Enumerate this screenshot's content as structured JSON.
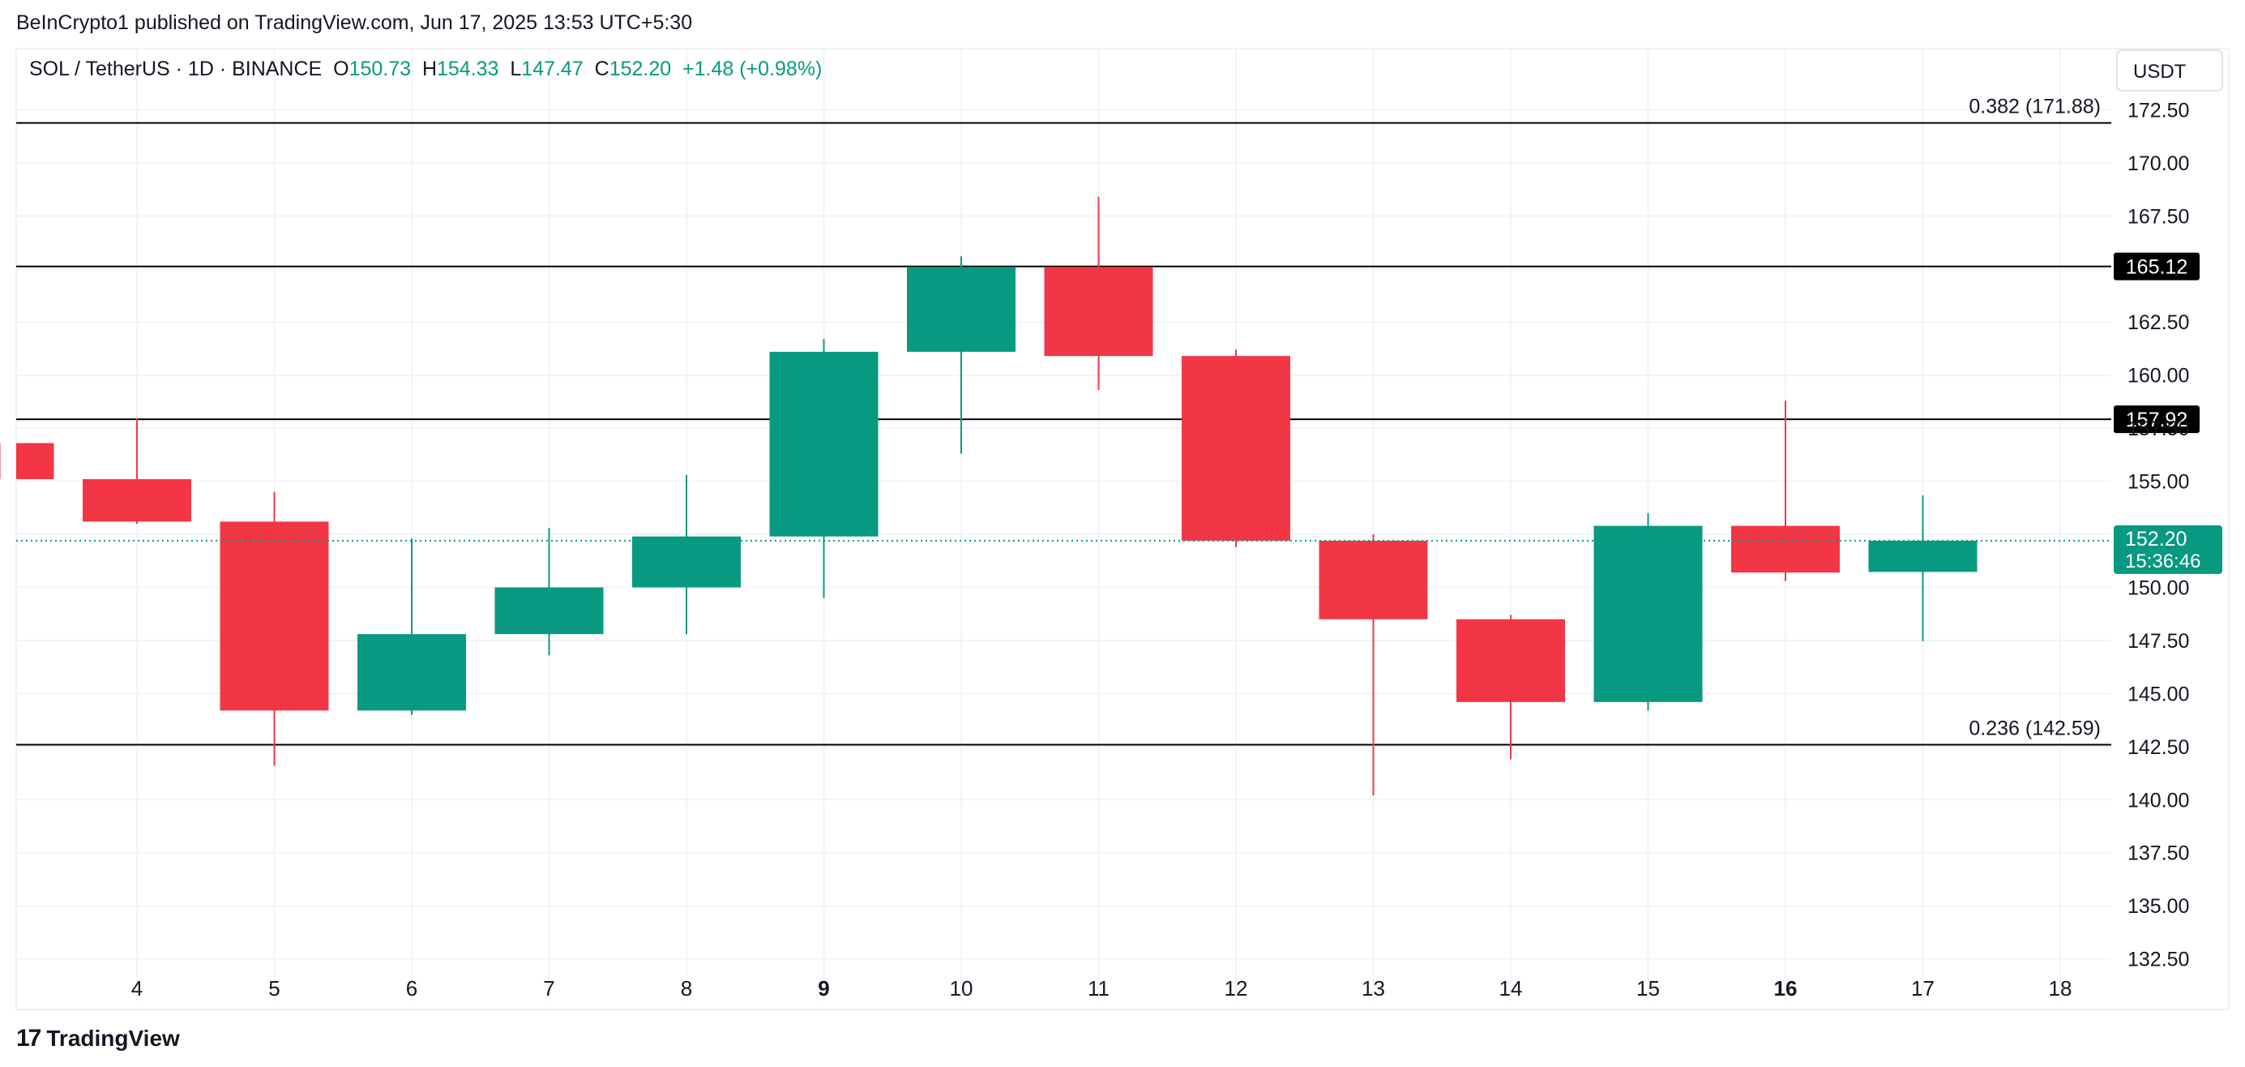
{
  "header": {
    "attribution": "BeInCrypto1 published on TradingView.com, Jun 17, 2025 13:53 UTC+5:30"
  },
  "legend": {
    "symbol": "SOL / TetherUS · 1D · BINANCE",
    "o_label": "O",
    "o_value": "150.73",
    "h_label": "H",
    "h_value": "154.33",
    "l_label": "L",
    "l_value": "147.47",
    "c_label": "C",
    "c_value": "152.20",
    "change": "+1.48 (+0.98%)"
  },
  "axis": {
    "currency": "USDT"
  },
  "footer": {
    "brand": "TradingView",
    "logo_glyph": "17"
  },
  "colors": {
    "up": "#089981",
    "down": "#f23645",
    "grid": "#f0f3fa",
    "text": "#131722",
    "level_line": "#000000",
    "label_bg": "#000000",
    "price_tag": "#089981"
  },
  "chart_data": {
    "type": "candlestick",
    "title": "",
    "ylim": [
      130.5,
      175
    ],
    "yticks": [
      132.5,
      135,
      137.5,
      140,
      142.5,
      145,
      147.5,
      150,
      152.5,
      155,
      157.5,
      160,
      162.5,
      165,
      167.5,
      170,
      172.5
    ],
    "ytick_labels": [
      "132.50",
      "135.00",
      "137.50",
      "140.00",
      "142.50",
      "145.00",
      "147.50",
      "150.00",
      "",
      "155.00",
      "157.50",
      "160.00",
      "162.50",
      "",
      "167.50",
      "170.00",
      "172.50"
    ],
    "x_labels": [
      {
        "day": 4,
        "label": "4",
        "bold": false
      },
      {
        "day": 5,
        "label": "5",
        "bold": false
      },
      {
        "day": 6,
        "label": "6",
        "bold": false
      },
      {
        "day": 7,
        "label": "7",
        "bold": false
      },
      {
        "day": 8,
        "label": "8",
        "bold": false
      },
      {
        "day": 9,
        "label": "9",
        "bold": true
      },
      {
        "day": 10,
        "label": "10",
        "bold": false
      },
      {
        "day": 11,
        "label": "11",
        "bold": false
      },
      {
        "day": 12,
        "label": "12",
        "bold": false
      },
      {
        "day": 13,
        "label": "13",
        "bold": false
      },
      {
        "day": 14,
        "label": "14",
        "bold": false
      },
      {
        "day": 15,
        "label": "15",
        "bold": false
      },
      {
        "day": 16,
        "label": "16",
        "bold": true
      },
      {
        "day": 17,
        "label": "17",
        "bold": false
      },
      {
        "day": 18,
        "label": "18",
        "bold": false
      }
    ],
    "candles": [
      {
        "day": 3,
        "open": 156.8,
        "high": 156.8,
        "low": 155.1,
        "close": 155.1
      },
      {
        "day": 4,
        "open": 155.1,
        "high": 157.95,
        "low": 153.0,
        "close": 153.1
      },
      {
        "day": 5,
        "open": 153.1,
        "high": 154.5,
        "low": 141.6,
        "close": 144.2
      },
      {
        "day": 6,
        "open": 144.2,
        "high": 152.3,
        "low": 144.0,
        "close": 147.8
      },
      {
        "day": 7,
        "open": 147.8,
        "high": 152.8,
        "low": 146.8,
        "close": 150.0
      },
      {
        "day": 8,
        "open": 150.0,
        "high": 155.3,
        "low": 147.8,
        "close": 152.4
      },
      {
        "day": 9,
        "open": 152.4,
        "high": 161.7,
        "low": 149.5,
        "close": 161.1
      },
      {
        "day": 10,
        "open": 161.1,
        "high": 165.6,
        "low": 156.3,
        "close": 165.1
      },
      {
        "day": 11,
        "open": 165.1,
        "high": 168.4,
        "low": 159.3,
        "close": 160.9
      },
      {
        "day": 12,
        "open": 160.9,
        "high": 161.2,
        "low": 151.9,
        "close": 152.2
      },
      {
        "day": 13,
        "open": 152.2,
        "high": 152.5,
        "low": 140.2,
        "close": 148.5
      },
      {
        "day": 14,
        "open": 148.5,
        "high": 148.7,
        "low": 141.9,
        "close": 144.6
      },
      {
        "day": 15,
        "open": 144.6,
        "high": 153.5,
        "low": 144.2,
        "close": 152.9
      },
      {
        "day": 16,
        "open": 152.9,
        "high": 158.8,
        "low": 150.3,
        "close": 150.7
      },
      {
        "day": 17,
        "open": 150.73,
        "high": 154.33,
        "low": 147.47,
        "close": 152.2
      }
    ],
    "levels": [
      {
        "price": 171.88,
        "label": "0.382 (171.88)",
        "style": "fib"
      },
      {
        "price": 165.12,
        "label": "165.12",
        "style": "tag"
      },
      {
        "price": 157.92,
        "label": "157.92",
        "style": "tag"
      },
      {
        "price": 142.59,
        "label": "0.236 (142.59)",
        "style": "fib"
      }
    ],
    "last_price": {
      "price": 152.2,
      "label": "152.20",
      "countdown": "15:36:46"
    }
  }
}
